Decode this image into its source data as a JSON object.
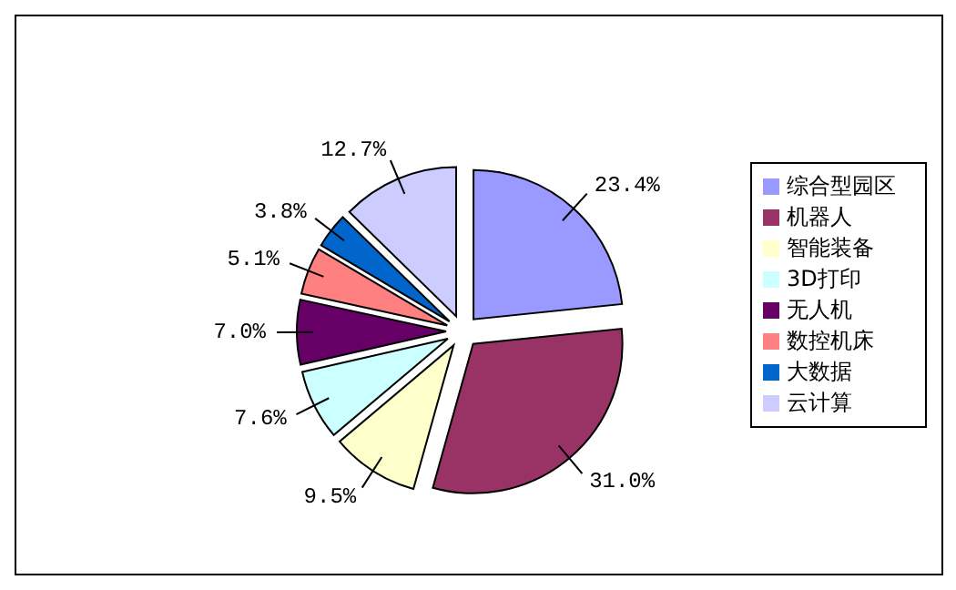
{
  "chart_data": {
    "type": "pie",
    "categories": [
      "综合型园区",
      "机器人",
      "智能装备",
      "3D打印",
      "无人机",
      "数控机床",
      "大数据",
      "云计算"
    ],
    "values": [
      23.4,
      31.0,
      9.5,
      7.6,
      7.0,
      5.1,
      3.8,
      12.7
    ],
    "value_labels": [
      "23.4%",
      "31.0%",
      "9.5%",
      "7.6%",
      "7.0%",
      "5.1%",
      "3.8%",
      "12.7%"
    ],
    "colors": [
      "#9999ff",
      "#993366",
      "#ffffcc",
      "#ccffff",
      "#660066",
      "#ff8080",
      "#0066cc",
      "#ccccff"
    ],
    "legend": "right"
  }
}
